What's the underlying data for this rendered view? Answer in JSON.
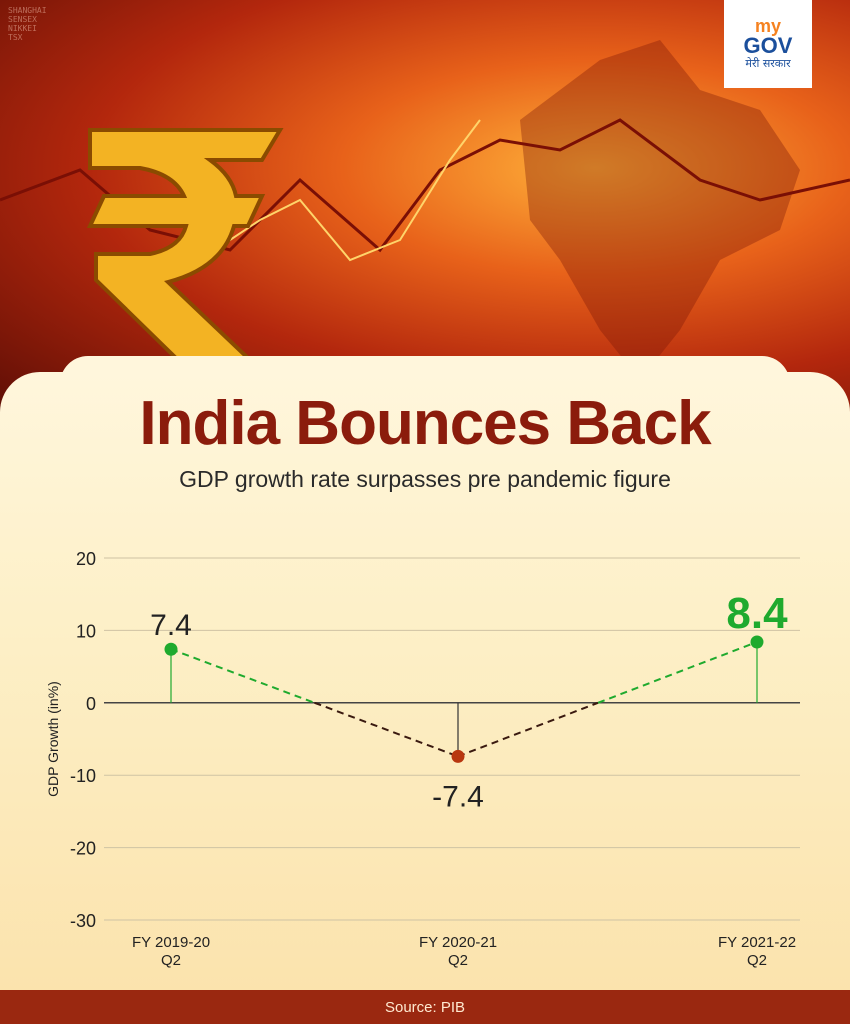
{
  "header": {
    "logo": {
      "line1": "my",
      "line2": "GOV",
      "line3": "मेरी सरकार"
    },
    "title": "India Bounces Back",
    "subtitle": "GDP growth rate surpasses pre pandemic figure"
  },
  "colors": {
    "title": "#8b1c0c",
    "positive": "#1faa2e",
    "negative": "#b8360f",
    "footer_bg": "#9a2810"
  },
  "chart_data": {
    "type": "line",
    "ylabel": "GDP Growth (in%)",
    "xlabel": "",
    "ylim": [
      -30,
      20
    ],
    "yticks": [
      20,
      10,
      0,
      -10,
      -20,
      -30
    ],
    "grid": true,
    "categories": [
      [
        "FY 2019-20",
        "Q2"
      ],
      [
        "FY 2020-21",
        "Q2"
      ],
      [
        "FY 2021-22",
        "Q2"
      ]
    ],
    "values": [
      7.4,
      -7.4,
      8.4
    ],
    "data_labels": [
      "7.4",
      "-7.4",
      "8.4"
    ]
  },
  "footer": {
    "source": "Source: PIB"
  }
}
